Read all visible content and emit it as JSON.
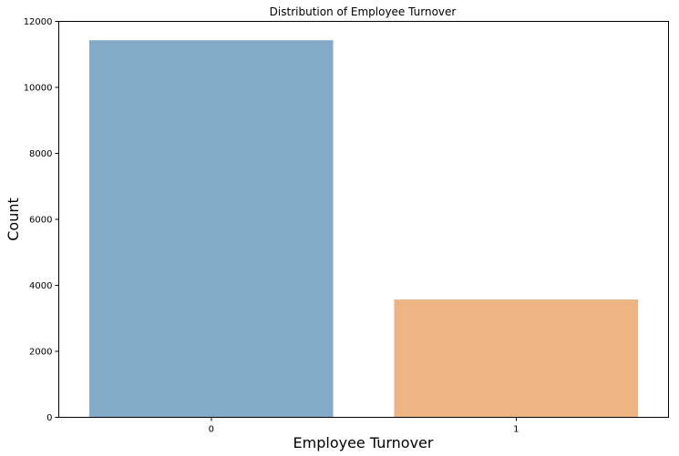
{
  "chart_data": {
    "type": "bar",
    "title": "Distribution of Employee Turnover",
    "xlabel": "Employee Turnover",
    "ylabel": "Count",
    "categories": [
      "0",
      "1"
    ],
    "values": [
      11428,
      3571
    ],
    "colors": [
      "#83aac6",
      "#edb583"
    ],
    "ylim": [
      0,
      12000
    ],
    "yticks": [
      0,
      2000,
      4000,
      6000,
      8000,
      10000,
      12000
    ],
    "grid": false,
    "legend": "none"
  }
}
